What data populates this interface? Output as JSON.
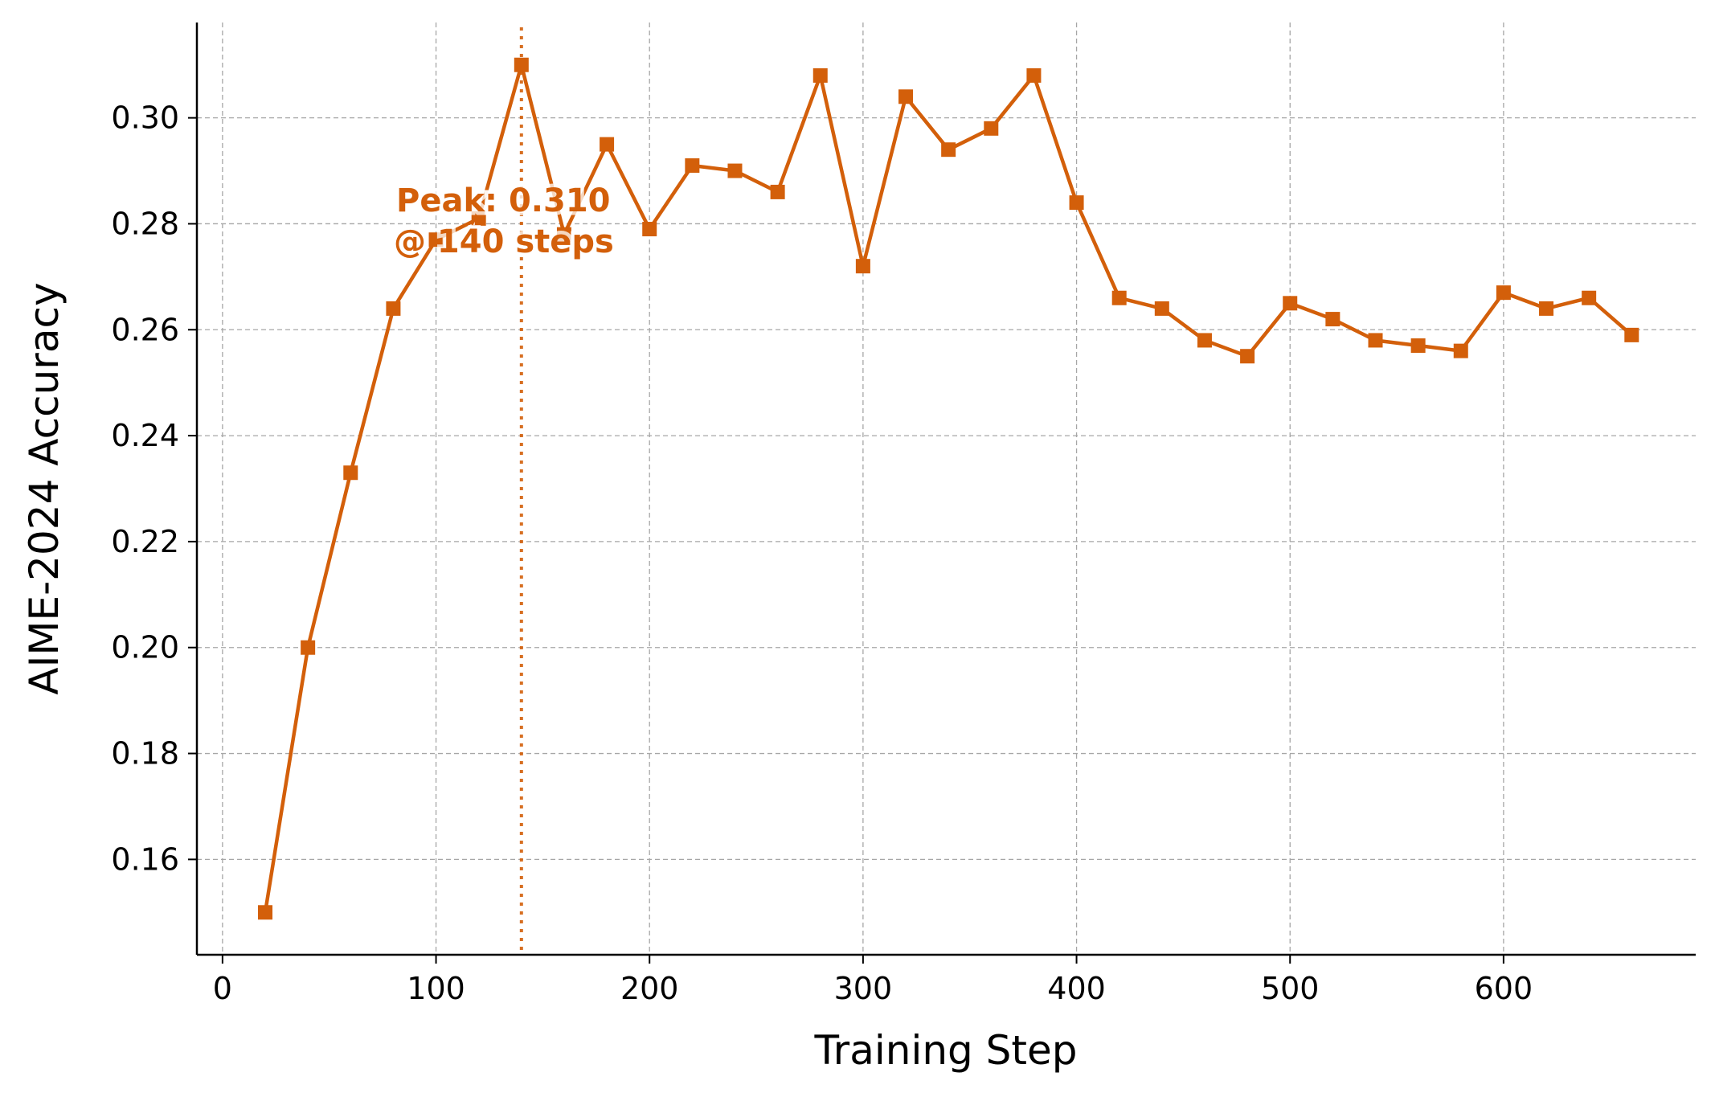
{
  "chart_data": {
    "type": "line",
    "title": "",
    "xlabel": "Training Step",
    "ylabel": "AIME-2024 Accuracy",
    "xlim": [
      -12,
      690
    ],
    "ylim": [
      0.142,
      0.318
    ],
    "x_ticks": [
      0,
      100,
      200,
      300,
      400,
      500,
      600
    ],
    "y_ticks": [
      0.16,
      0.18,
      0.2,
      0.22,
      0.24,
      0.26,
      0.28,
      0.3
    ],
    "x_tick_labels": [
      "0",
      "100",
      "200",
      "300",
      "400",
      "500",
      "600"
    ],
    "y_tick_labels": [
      "0.16",
      "0.18",
      "0.20",
      "0.22",
      "0.24",
      "0.26",
      "0.28",
      "0.30"
    ],
    "grid": true,
    "color": "#d35f0a",
    "marker": "square",
    "series": [
      {
        "name": "",
        "x": [
          20,
          40,
          60,
          80,
          100,
          120,
          140,
          160,
          180,
          200,
          220,
          240,
          260,
          280,
          300,
          320,
          340,
          360,
          380,
          400,
          420,
          440,
          460,
          480,
          500,
          520,
          540,
          560,
          580,
          600,
          620,
          640,
          660
        ],
        "y": [
          0.15,
          0.2,
          0.233,
          0.264,
          0.277,
          0.281,
          0.31,
          0.278,
          0.295,
          0.279,
          0.291,
          0.29,
          0.286,
          0.308,
          0.272,
          0.304,
          0.294,
          0.298,
          0.308,
          0.284,
          0.266,
          0.264,
          0.258,
          0.255,
          0.265,
          0.262,
          0.258,
          0.257,
          0.256,
          0.267,
          0.264,
          0.266,
          0.259
        ]
      }
    ],
    "peak_line_x": 140,
    "annotation": {
      "line1": "Peak: 0.310",
      "line2": "@ 140 steps"
    }
  }
}
